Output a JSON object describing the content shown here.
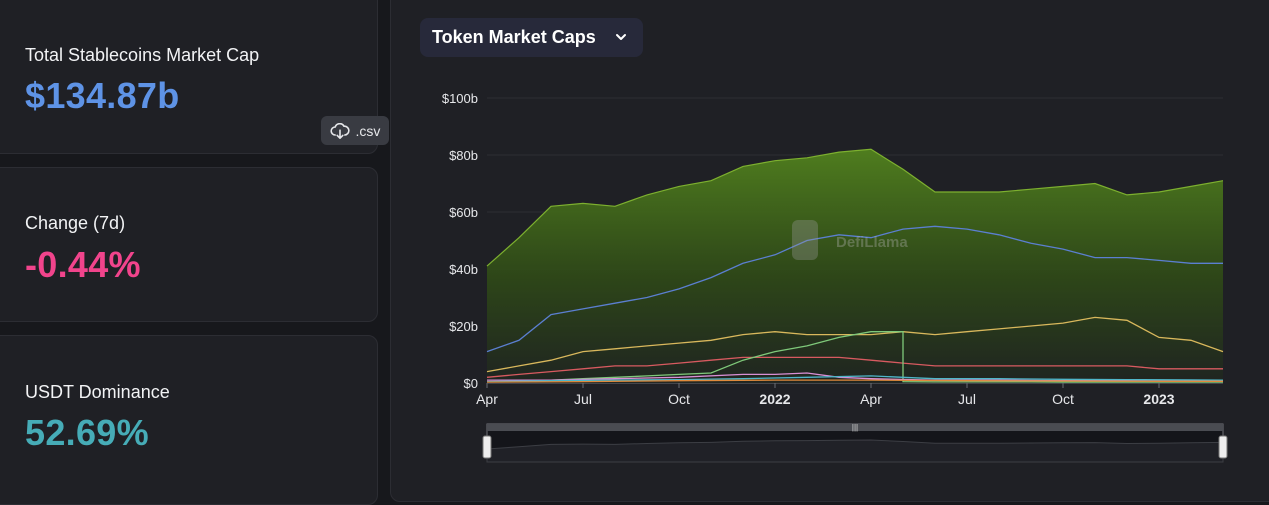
{
  "stats": {
    "total_label": "Total Stablecoins Market Cap",
    "total_value": "$134.87b",
    "csv_label": ".csv",
    "change_label": "Change (7d)",
    "change_value": "-0.44%",
    "dominance_label": "USDT Dominance",
    "dominance_value": "52.69%"
  },
  "colors": {
    "total": "#5e93e6",
    "change": "#f1448c",
    "dominance": "#46acb7"
  },
  "dropdown": {
    "label": "Token Market Caps",
    "icon": "chevron-down-icon"
  },
  "watermark": "DefiLlama",
  "chart_data": {
    "type": "area",
    "y_unit": "billions USD",
    "ylim": [
      0,
      100
    ],
    "y_ticks": [
      "$0",
      "$20b",
      "$40b",
      "$60b",
      "$80b",
      "$100b"
    ],
    "x_ticks": [
      "Apr",
      "Jul",
      "Oct",
      "2022",
      "Apr",
      "Jul",
      "Oct",
      "2023"
    ],
    "x_range": [
      "2021-04",
      "2023-03"
    ],
    "grid": true,
    "series": [
      {
        "color": "#5f8a22",
        "fill": true,
        "x": [
          "2021-04",
          "2021-05",
          "2021-06",
          "2021-07",
          "2021-08",
          "2021-09",
          "2021-10",
          "2021-11",
          "2021-12",
          "2022-01",
          "2022-02",
          "2022-03",
          "2022-04",
          "2022-05",
          "2022-06",
          "2022-07",
          "2022-08",
          "2022-09",
          "2022-10",
          "2022-11",
          "2022-12",
          "2023-01",
          "2023-02",
          "2023-03"
        ],
        "values": [
          41,
          51,
          62,
          63,
          62,
          66,
          69,
          71,
          76,
          78,
          79,
          81,
          82,
          75,
          67,
          67,
          67,
          68,
          69,
          70,
          66,
          67,
          69,
          71
        ]
      },
      {
        "color": "#5b7fd1",
        "x": [
          "2021-04",
          "2021-05",
          "2021-06",
          "2021-07",
          "2021-08",
          "2021-09",
          "2021-10",
          "2021-11",
          "2021-12",
          "2022-01",
          "2022-02",
          "2022-03",
          "2022-04",
          "2022-05",
          "2022-06",
          "2022-07",
          "2022-08",
          "2022-09",
          "2022-10",
          "2022-11",
          "2022-12",
          "2023-01",
          "2023-02",
          "2023-03"
        ],
        "values": [
          11,
          15,
          24,
          26,
          28,
          30,
          33,
          37,
          42,
          45,
          50,
          52,
          51,
          54,
          55,
          54,
          52,
          49,
          47,
          44,
          44,
          43,
          42,
          42
        ]
      },
      {
        "color": "#d9b85c",
        "x": [
          "2021-04",
          "2021-05",
          "2021-06",
          "2021-07",
          "2021-08",
          "2021-09",
          "2021-10",
          "2021-11",
          "2021-12",
          "2022-01",
          "2022-02",
          "2022-03",
          "2022-04",
          "2022-05",
          "2022-06",
          "2022-07",
          "2022-08",
          "2022-09",
          "2022-10",
          "2022-11",
          "2022-12",
          "2023-01",
          "2023-02",
          "2023-03"
        ],
        "values": [
          4,
          6,
          8,
          11,
          12,
          13,
          14,
          15,
          17,
          18,
          17,
          17,
          17,
          18,
          17,
          18,
          19,
          20,
          21,
          23,
          22,
          16,
          15,
          11
        ]
      },
      {
        "color": "#d85a60",
        "x": [
          "2021-04",
          "2021-05",
          "2021-06",
          "2021-07",
          "2021-08",
          "2021-09",
          "2021-10",
          "2021-11",
          "2021-12",
          "2022-01",
          "2022-02",
          "2022-03",
          "2022-04",
          "2022-05",
          "2022-06",
          "2022-07",
          "2022-08",
          "2022-09",
          "2022-10",
          "2022-11",
          "2022-12",
          "2023-01",
          "2023-02",
          "2023-03"
        ],
        "values": [
          2,
          3,
          4,
          5,
          6,
          6,
          7,
          8,
          9,
          9,
          9,
          9,
          8,
          7,
          6,
          6,
          6,
          6,
          6,
          6,
          6,
          5,
          5,
          5
        ]
      },
      {
        "color": "#7fc97a",
        "x": [
          "2021-04",
          "2021-05",
          "2021-06",
          "2021-07",
          "2021-08",
          "2021-09",
          "2021-10",
          "2021-11",
          "2021-12",
          "2022-01",
          "2022-02",
          "2022-03",
          "2022-04",
          "2022-05",
          "2022-05",
          "2022-06",
          "2022-07",
          "2022-08",
          "2022-09",
          "2022-10",
          "2022-11",
          "2022-12",
          "2023-01",
          "2023-02",
          "2023-03"
        ],
        "values": [
          0.5,
          0.6,
          1,
          1.5,
          2,
          2.5,
          3,
          3.5,
          8,
          11,
          13,
          16,
          18,
          18,
          0.5,
          0.4,
          0.4,
          0.4,
          0.4,
          0.3,
          0.3,
          0.3,
          0.3,
          0.3,
          0.3
        ]
      },
      {
        "color": "#d98fd6",
        "x": [
          "2021-04",
          "2021-06",
          "2021-08",
          "2021-10",
          "2021-12",
          "2022-01",
          "2022-02",
          "2022-03",
          "2022-04",
          "2022-06",
          "2022-08",
          "2022-10",
          "2022-12",
          "2023-02",
          "2023-03"
        ],
        "values": [
          1,
          1,
          1.5,
          2,
          3,
          3,
          3.5,
          2,
          1.5,
          1,
          1,
          0.8,
          0.8,
          0.7,
          0.7
        ]
      },
      {
        "color": "#4fb6c9",
        "x": [
          "2021-04",
          "2021-06",
          "2021-08",
          "2021-10",
          "2021-12",
          "2022-02",
          "2022-04",
          "2022-05",
          "2022-06",
          "2022-08",
          "2022-10",
          "2022-12",
          "2023-02",
          "2023-03"
        ],
        "values": [
          0.5,
          0.8,
          1,
          1.2,
          1.5,
          2,
          2.5,
          2,
          1.5,
          1.5,
          1.3,
          1.2,
          1.1,
          1.0
        ]
      },
      {
        "color": "#e08a3c",
        "x": [
          "2021-04",
          "2021-07",
          "2021-10",
          "2022-01",
          "2022-04",
          "2022-07",
          "2022-10",
          "2023-01",
          "2023-03"
        ],
        "values": [
          0.3,
          0.5,
          0.8,
          1.0,
          1.0,
          0.8,
          0.7,
          0.6,
          0.6
        ]
      }
    ],
    "brush": {
      "start": "2021-04",
      "end": "2023-03"
    }
  }
}
